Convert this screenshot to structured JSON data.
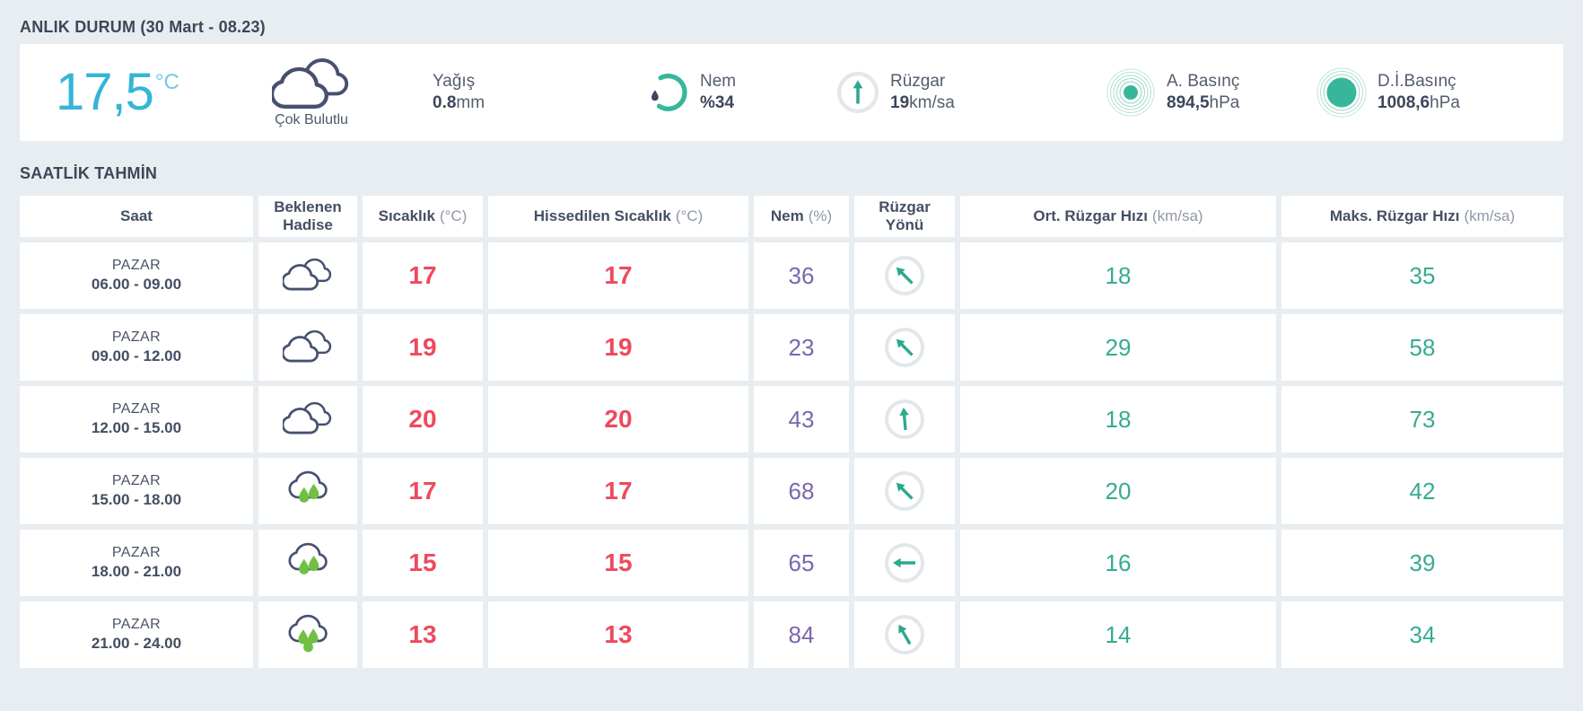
{
  "current": {
    "section_title": "ANLIK DURUM",
    "section_subtitle": "(30 Mart - 08.23)",
    "temperature": {
      "value": "17,5",
      "unit": "°C"
    },
    "condition": {
      "label": "Çok Bulutlu"
    },
    "precipitation": {
      "label": "Yağış",
      "value": "0.8",
      "unit": "mm"
    },
    "humidity": {
      "label": "Nem",
      "value": "%34"
    },
    "wind": {
      "label": "Rüzgar",
      "value": "19",
      "unit": "km/sa",
      "direction_deg": 0
    },
    "station_pressure": {
      "label": "A. Basınç",
      "value": "894,5",
      "unit": "hPa"
    },
    "sealevel_pressure": {
      "label": "D.İ.Basınç",
      "value": "1008,6",
      "unit": "hPa"
    }
  },
  "forecast": {
    "section_title": "SAATLİK TAHMİN",
    "columns": [
      {
        "label": "Saat",
        "unit": ""
      },
      {
        "label": "Beklenen Hadise",
        "unit": ""
      },
      {
        "label": "Sıcaklık",
        "unit": "(°C)"
      },
      {
        "label": "Hissedilen Sıcaklık",
        "unit": "(°C)"
      },
      {
        "label": "Nem",
        "unit": "(%)"
      },
      {
        "label": "Rüzgar Yönü",
        "unit": ""
      },
      {
        "label": "Ort. Rüzgar Hızı",
        "unit": "(km/sa)"
      },
      {
        "label": "Maks. Rüzgar Hızı",
        "unit": "(km/sa)"
      }
    ],
    "rows": [
      {
        "day": "PAZAR",
        "time": "06.00 - 09.00",
        "condition": "cloudy",
        "temp": "17",
        "feels_like": "17",
        "humidity": "36",
        "wind_direction": "NW",
        "wind_dir_deg": -45,
        "wind_avg": "18",
        "wind_max": "35"
      },
      {
        "day": "PAZAR",
        "time": "09.00 - 12.00",
        "condition": "cloudy",
        "temp": "19",
        "feels_like": "19",
        "humidity": "23",
        "wind_direction": "NW",
        "wind_dir_deg": -45,
        "wind_avg": "29",
        "wind_max": "58"
      },
      {
        "day": "PAZAR",
        "time": "12.00 - 15.00",
        "condition": "cloudy",
        "temp": "20",
        "feels_like": "20",
        "humidity": "43",
        "wind_direction": "N",
        "wind_dir_deg": -5,
        "wind_avg": "18",
        "wind_max": "73"
      },
      {
        "day": "PAZAR",
        "time": "15.00 - 18.00",
        "condition": "rain-light",
        "temp": "17",
        "feels_like": "17",
        "humidity": "68",
        "wind_direction": "NW",
        "wind_dir_deg": -45,
        "wind_avg": "20",
        "wind_max": "42"
      },
      {
        "day": "PAZAR",
        "time": "18.00 - 21.00",
        "condition": "rain-light",
        "temp": "15",
        "feels_like": "15",
        "humidity": "65",
        "wind_direction": "W",
        "wind_dir_deg": -90,
        "wind_avg": "16",
        "wind_max": "39"
      },
      {
        "day": "PAZAR",
        "time": "21.00 - 24.00",
        "condition": "rain-heavy",
        "temp": "13",
        "feels_like": "13",
        "humidity": "84",
        "wind_direction": "NNW",
        "wind_dir_deg": -30,
        "wind_avg": "14",
        "wind_max": "34"
      }
    ]
  },
  "colors": {
    "temperature_cyan": "#35b5d8",
    "temperature_red": "#ee4a5d",
    "humidity_purple": "#7a67ad",
    "speed_teal": "#35ab93",
    "accent_teal": "#36b79b",
    "rain_green": "#70c043",
    "text_navy": "#3d4758",
    "background": "#e8edf1"
  }
}
